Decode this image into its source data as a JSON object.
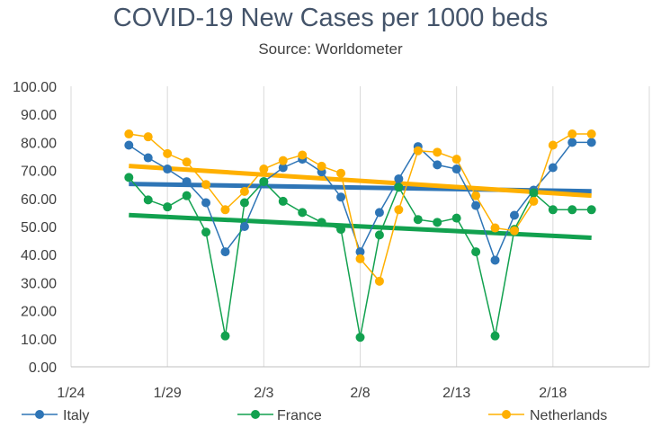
{
  "chart_data": {
    "type": "line",
    "title": "COVID-19 New Cases per 1000 beds",
    "subtitle": "Source: Worldometer",
    "xlabel": "",
    "ylabel": "",
    "ylim": [
      0,
      100
    ],
    "y_ticks": [
      "0.00",
      "10.00",
      "20.00",
      "30.00",
      "40.00",
      "50.00",
      "60.00",
      "70.00",
      "80.00",
      "90.00",
      "100.00"
    ],
    "x_ticks": [
      "1/24",
      "1/29",
      "2/3",
      "2/8",
      "2/13",
      "2/18"
    ],
    "x_range_days": [
      0,
      30
    ],
    "x": [
      3,
      4,
      5,
      6,
      7,
      8,
      9,
      10,
      11,
      12,
      13,
      14,
      15,
      16,
      17,
      18,
      19,
      20,
      21,
      22,
      23,
      24,
      25,
      26,
      27
    ],
    "grid": "vertical",
    "legend_position": "bottom",
    "series": [
      {
        "name": "Italy",
        "color": "#2E75B6",
        "values": [
          79,
          74.5,
          70.5,
          66,
          58.5,
          41,
          50,
          66,
          71,
          74,
          69.5,
          60.5,
          41,
          55,
          67,
          78.5,
          72,
          70.5,
          57.5,
          38,
          54,
          63,
          71,
          80,
          80
        ],
        "trend": [
          65.2,
          62.6
        ]
      },
      {
        "name": "France",
        "color": "#12A14F",
        "values": [
          67.5,
          59.5,
          57,
          61,
          48,
          11,
          58.5,
          66,
          59,
          55,
          51.5,
          49,
          10.5,
          47,
          64,
          52.5,
          51.5,
          53,
          41,
          11,
          49,
          62,
          56,
          56,
          56
        ],
        "trend": [
          54.1,
          46
        ]
      },
      {
        "name": "Netherlands",
        "color": "#FFB000",
        "values": [
          83,
          82,
          76,
          73,
          65,
          56,
          62.5,
          70.5,
          73.5,
          75.5,
          71.5,
          69,
          38.5,
          30.5,
          56,
          77,
          76.5,
          74,
          61,
          49.5,
          48.5,
          59,
          79,
          83,
          83
        ],
        "trend": [
          71.6,
          61
        ]
      }
    ]
  }
}
